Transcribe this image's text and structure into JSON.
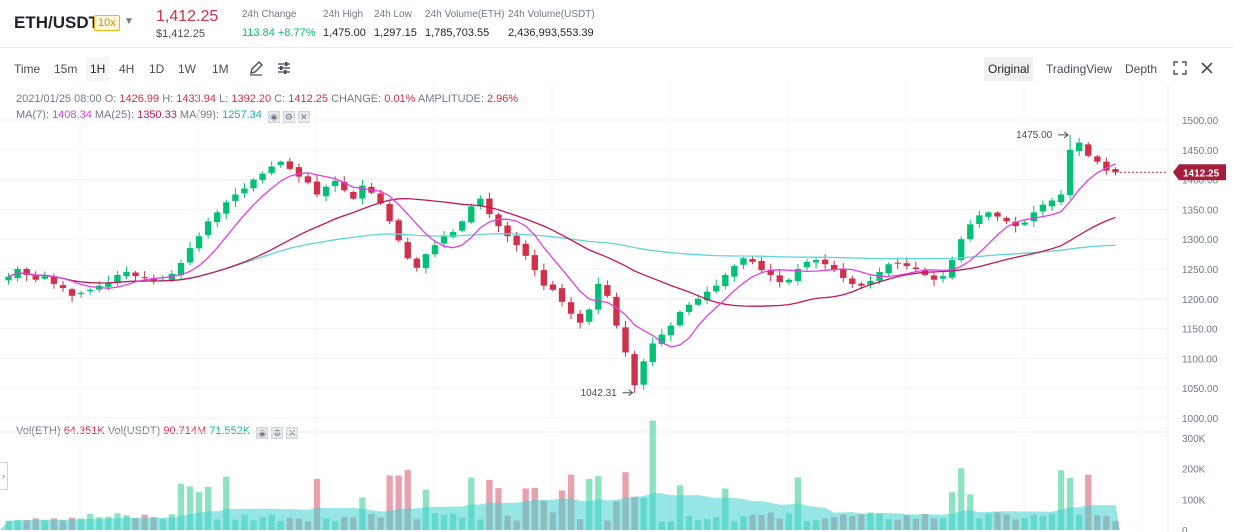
{
  "header": {
    "pair": "ETH/USDT",
    "leverage": "10x",
    "last_price": "1,412.25",
    "last_price_usd": "$1,412.25",
    "stats": [
      {
        "label": "24h Change",
        "value": "113.84 +8.77%",
        "color": "green"
      },
      {
        "label": "24h High",
        "value": "1,475.00"
      },
      {
        "label": "24h Low",
        "value": "1,297.15"
      },
      {
        "label": "24h Volume(ETH)",
        "value": "1,785,703.55"
      },
      {
        "label": "24h Volume(USDT)",
        "value": "2,436,993,553.39"
      }
    ]
  },
  "toolbar": {
    "intervals": [
      "Time",
      "15m",
      "1H",
      "4H",
      "1D",
      "1W",
      "1M"
    ],
    "active_interval": "1H",
    "views": [
      "Original",
      "TradingView",
      "Depth"
    ],
    "active_view": "Original"
  },
  "legend": {
    "date": "2021/01/25 08:00",
    "o_label": "O:",
    "o": "1426.99",
    "h_label": "H:",
    "h": "1433.94",
    "l_label": "L:",
    "l": "1392.20",
    "c_label": "C:",
    "c": "1412.25",
    "change_label": "CHANGE:",
    "change": "0.01%",
    "amplitude_label": "AMPLITUDE:",
    "amplitude": "2.96%",
    "ma7_label": "MA(7):",
    "ma7": "1408.34",
    "ma25_label": "MA(25):",
    "ma25": "1350.33",
    "ma99_label": "MA(99):",
    "ma99": "1257.34",
    "vol_eth_label": "Vol(ETH)",
    "vol_eth": "64.351K",
    "vol_usdt_label": "Vol(USDT)",
    "vol_usdt": "90.714M",
    "vol_ma": "71.552K"
  },
  "colors": {
    "up": "#02c076",
    "down": "#cf304a",
    "ma7": "#e040e0",
    "ma25": "#c2185b",
    "ma99": "#5fd6d6"
  },
  "chart_data": {
    "type": "candlestick",
    "price_axis": {
      "ticks": [
        "1500.00",
        "1450.00",
        "1400.00",
        "1350.00",
        "1300.00",
        "1250.00",
        "1200.00",
        "1150.00",
        "1100.00",
        "1050.00",
        "1000.00"
      ],
      "range": [
        1000,
        1500
      ]
    },
    "volume_axis": {
      "ticks": [
        "300K",
        "200K",
        "100K",
        "0"
      ],
      "range": [
        0,
        300000
      ]
    },
    "current_price_label": "1412.25",
    "high_annotation": "1475.00",
    "low_annotation": "1042.31",
    "close_path": [
      1237,
      1250,
      1240,
      1232,
      1238,
      1225,
      1218,
      1205,
      1210,
      1215,
      1222,
      1228,
      1240,
      1245,
      1238,
      1235,
      1230,
      1232,
      1242,
      1260,
      1285,
      1305,
      1330,
      1345,
      1362,
      1375,
      1385,
      1400,
      1410,
      1422,
      1430,
      1418,
      1405,
      1395,
      1375,
      1388,
      1398,
      1382,
      1368,
      1390,
      1378,
      1360,
      1330,
      1298,
      1268,
      1252,
      1275,
      1290,
      1305,
      1312,
      1330,
      1355,
      1368,
      1342,
      1322,
      1305,
      1290,
      1272,
      1248,
      1222,
      1215,
      1195,
      1175,
      1160,
      1182,
      1225,
      1205,
      1155,
      1110,
      1055,
      1095,
      1125,
      1140,
      1155,
      1178,
      1190,
      1200,
      1212,
      1222,
      1240,
      1255,
      1268,
      1262,
      1248,
      1240,
      1228,
      1232,
      1250,
      1262,
      1265,
      1258,
      1248,
      1235,
      1225,
      1222,
      1230,
      1245,
      1258,
      1260,
      1255,
      1250,
      1240,
      1232,
      1238,
      1265,
      1300,
      1325,
      1340,
      1345,
      1338,
      1330,
      1322,
      1328,
      1345,
      1358,
      1365,
      1375,
      1450,
      1462,
      1440,
      1430,
      1415,
      1412
    ],
    "ma7": "1408.34",
    "ma25": "1350.33",
    "ma99": "1257.34"
  }
}
